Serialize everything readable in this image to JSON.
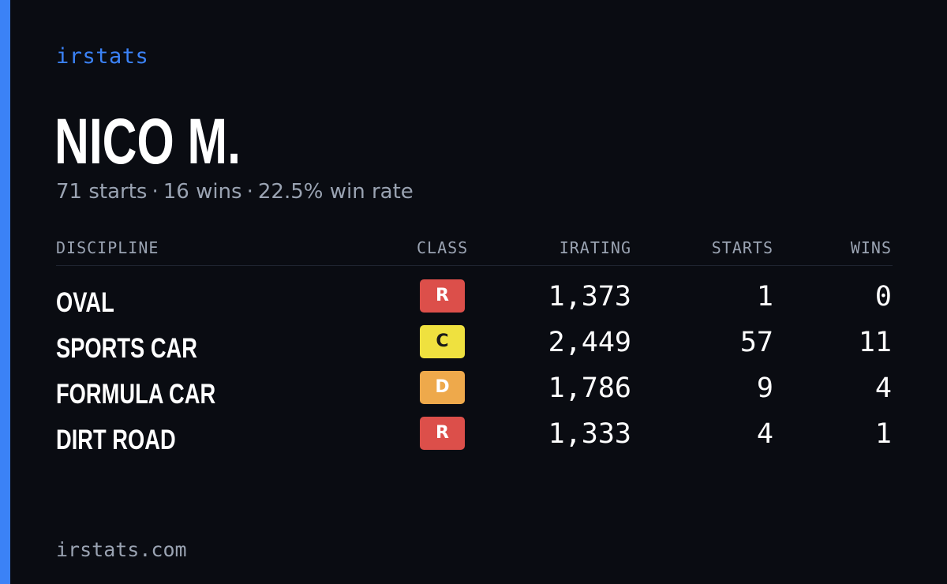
{
  "brand": "irstats",
  "driver": {
    "name": "NICO M.",
    "starts_text": "71 starts",
    "wins_text": "16 wins",
    "win_rate_text": "22.5% win rate",
    "separator": "·"
  },
  "table": {
    "headers": {
      "discipline": "DISCIPLINE",
      "class": "CLASS",
      "irating": "IRATING",
      "starts": "STARTS",
      "wins": "WINS"
    },
    "rows": [
      {
        "discipline": "OVAL",
        "class": "R",
        "irating": "1,373",
        "starts": "1",
        "wins": "0"
      },
      {
        "discipline": "SPORTS CAR",
        "class": "C",
        "irating": "2,449",
        "starts": "57",
        "wins": "11"
      },
      {
        "discipline": "FORMULA CAR",
        "class": "D",
        "irating": "1,786",
        "starts": "9",
        "wins": "4"
      },
      {
        "discipline": "DIRT ROAD",
        "class": "R",
        "irating": "1,333",
        "starts": "4",
        "wins": "1"
      }
    ]
  },
  "footer": {
    "url": "irstats.com"
  },
  "colors": {
    "background": "#0a0c12",
    "accent": "#3b82f6",
    "muted_text": "#9aa3b2",
    "class_R": "#dc4f4a",
    "class_C": "#efe13f",
    "class_D": "#eea94b",
    "class_R_text": "#ffffff",
    "class_C_text": "#1a1a1a",
    "class_D_text": "#ffffff"
  }
}
